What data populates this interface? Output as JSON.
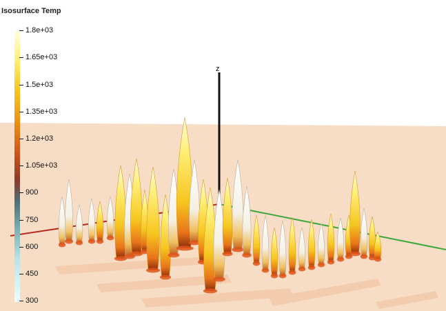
{
  "legend": {
    "title": "Isosurface Temp",
    "ticks": [
      "1.8e+03",
      "1.65e+03",
      "1.5e+03",
      "1.35e+03",
      "1.2e+03",
      "1.05e+03",
      "900",
      "750",
      "600",
      "450",
      "300"
    ]
  },
  "axis": {
    "z_label": "z"
  },
  "colors": {
    "floor": "#f7dcc6",
    "x_axis": "#b52a1c",
    "y_axis": "#3aa83a",
    "z_axis": "#111111"
  }
}
